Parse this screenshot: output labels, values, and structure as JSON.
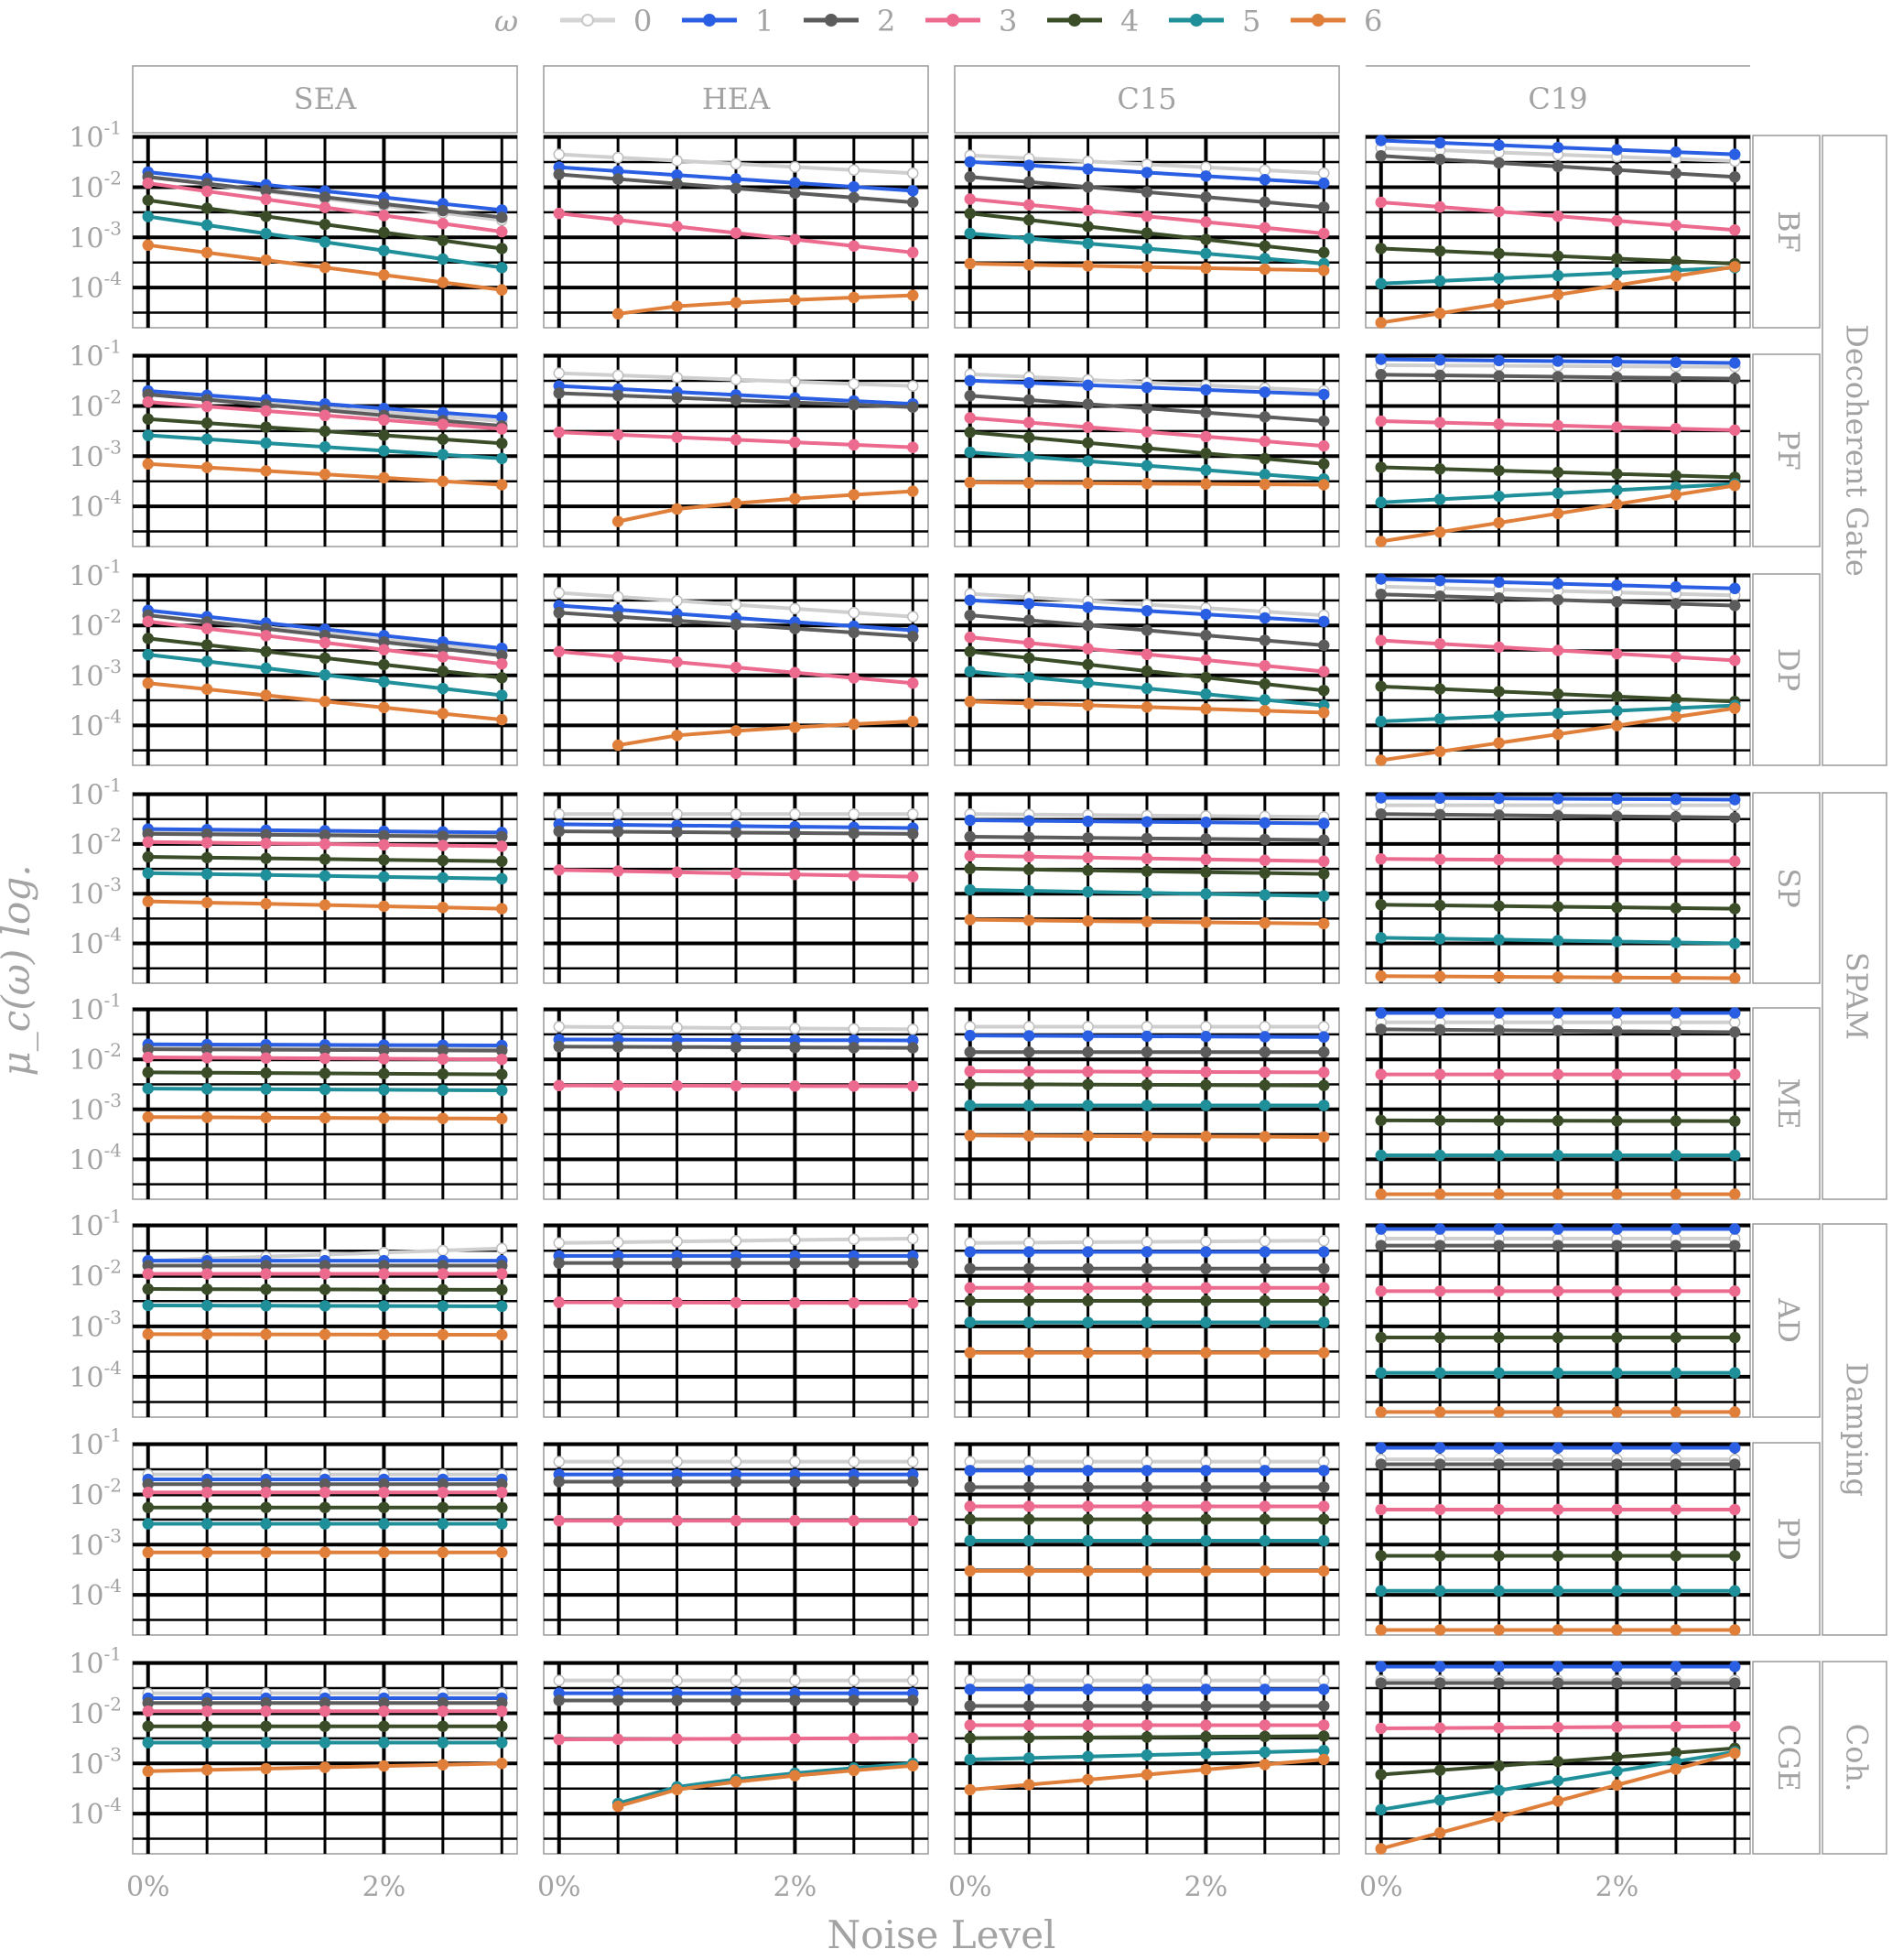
{
  "chart_data": {
    "type": "line",
    "facet_rows": [
      {
        "label": "BF",
        "group": "Decoherent Gate"
      },
      {
        "label": "PF",
        "group": "Decoherent Gate"
      },
      {
        "label": "DP",
        "group": "Decoherent Gate"
      },
      {
        "label": "SP",
        "group": "SPAM"
      },
      {
        "label": "ME",
        "group": "SPAM"
      },
      {
        "label": "AD",
        "group": "Damping"
      },
      {
        "label": "PD",
        "group": "Damping"
      },
      {
        "label": "CGE",
        "group": "Coh."
      }
    ],
    "row_groups": [
      {
        "label": "Decoherent Gate",
        "rows": [
          0,
          2
        ]
      },
      {
        "label": "SPAM",
        "rows": [
          3,
          4
        ]
      },
      {
        "label": "Damping",
        "rows": [
          5,
          6
        ]
      },
      {
        "label": "Coh.",
        "rows": [
          7,
          7
        ]
      }
    ],
    "facet_cols": [
      "SEA",
      "HEA",
      "C15",
      "C19"
    ],
    "xlabel": "Noise Level",
    "ylabel": "μ_c(ω) log.",
    "legend_title": "ω",
    "legend_position": "top",
    "x": [
      0,
      0.5,
      1,
      1.5,
      2,
      2.5,
      3
    ],
    "x_ticks": [
      {
        "value": 0,
        "label": "0%"
      },
      {
        "value": 2,
        "label": "2%"
      }
    ],
    "xlim": [
      -0.13,
      3.13
    ],
    "y_scale": "log",
    "ylim_exp": [
      -4.8,
      -0.97
    ],
    "y_ticks": [
      {
        "exp": -1,
        "base": "10",
        "sup": "-1"
      },
      {
        "exp": -2,
        "base": "10",
        "sup": "-2"
      },
      {
        "exp": -3,
        "base": "10",
        "sup": "-3"
      },
      {
        "exp": -4,
        "base": "10",
        "sup": "-4"
      }
    ],
    "series": [
      {
        "name": "0",
        "color": "#ffffff"
      },
      {
        "name": "1",
        "color": "#2b5fe3"
      },
      {
        "name": "2",
        "color": "#5c5c5c"
      },
      {
        "name": "3",
        "color": "#ec6a8e"
      },
      {
        "name": "4",
        "color": "#3a4d28"
      },
      {
        "name": "5",
        "color": "#1f8f99"
      },
      {
        "name": "6",
        "color": "#e07f3a"
      }
    ],
    "panels": {
      "BF": {
        "SEA": [
          [
            0.016,
            0.0022
          ],
          [
            0.02,
            0.0035
          ],
          [
            0.016,
            0.0025
          ],
          [
            0.012,
            0.0013
          ],
          [
            0.0055,
            0.0006
          ],
          [
            0.0026,
            0.00025
          ],
          [
            0.0007,
            9e-05
          ]
        ],
        "HEA": [
          [
            0.045,
            0.019
          ],
          [
            0.025,
            0.0085
          ],
          [
            0.018,
            0.005
          ],
          [
            0.003,
            0.0005
          ],
          null,
          null,
          [
            null,
            3e-05,
            7e-05
          ]
        ],
        "C15": [
          [
            0.043,
            0.019
          ],
          [
            0.032,
            0.012
          ],
          [
            0.016,
            0.004
          ],
          [
            0.0058,
            0.0012
          ],
          [
            0.003,
            0.0005
          ],
          [
            0.0012,
            0.0003
          ],
          [
            0.0003,
            0.00022
          ]
        ],
        "C19": [
          [
            0.06,
            0.033
          ],
          [
            0.085,
            0.045
          ],
          [
            0.042,
            0.016
          ],
          [
            0.005,
            0.0014
          ],
          [
            0.0006,
            0.0003
          ],
          [
            0.00012,
            0.00025
          ],
          [
            2e-05,
            0.00026
          ]
        ]
      },
      "PF": {
        "SEA": [
          [
            0.017,
            0.005
          ],
          [
            0.02,
            0.006
          ],
          [
            0.017,
            0.004
          ],
          [
            0.012,
            0.0035
          ],
          [
            0.0055,
            0.0018
          ],
          [
            0.0026,
            0.0009
          ],
          [
            0.0007,
            0.00027
          ]
        ],
        "HEA": [
          [
            0.045,
            0.025
          ],
          [
            0.025,
            0.011
          ],
          [
            0.018,
            0.0095
          ],
          [
            0.003,
            0.0015
          ],
          null,
          null,
          [
            null,
            5e-05,
            0.0002
          ]
        ],
        "C15": [
          [
            0.043,
            0.02
          ],
          [
            0.032,
            0.017
          ],
          [
            0.016,
            0.005
          ],
          [
            0.0058,
            0.0016
          ],
          [
            0.003,
            0.0007
          ],
          [
            0.0012,
            0.00035
          ],
          [
            0.0003,
            0.00027
          ]
        ],
        "C19": [
          [
            0.065,
            0.06
          ],
          [
            0.085,
            0.072
          ],
          [
            0.042,
            0.035
          ],
          [
            0.005,
            0.0033
          ],
          [
            0.0006,
            0.00038
          ],
          [
            0.00012,
            0.00028
          ],
          [
            2e-05,
            0.00026
          ]
        ]
      },
      "DP": {
        "SEA": [
          [
            0.016,
            0.003
          ],
          [
            0.02,
            0.0035
          ],
          [
            0.016,
            0.0025
          ],
          [
            0.012,
            0.0017
          ],
          [
            0.0055,
            0.0009
          ],
          [
            0.0026,
            0.0004
          ],
          [
            0.0007,
            0.00013
          ]
        ],
        "HEA": [
          [
            0.045,
            0.015
          ],
          [
            0.025,
            0.008
          ],
          [
            0.018,
            0.006
          ],
          [
            0.003,
            0.0007
          ],
          null,
          null,
          [
            null,
            4e-05,
            0.00012
          ]
        ],
        "C15": [
          [
            0.043,
            0.016
          ],
          [
            0.032,
            0.012
          ],
          [
            0.016,
            0.004
          ],
          [
            0.0058,
            0.0012
          ],
          [
            0.003,
            0.0005
          ],
          [
            0.0012,
            0.00025
          ],
          [
            0.0003,
            0.00018
          ]
        ],
        "C19": [
          [
            0.06,
            0.04
          ],
          [
            0.085,
            0.055
          ],
          [
            0.042,
            0.025
          ],
          [
            0.005,
            0.002
          ],
          [
            0.0006,
            0.0003
          ],
          [
            0.00012,
            0.00025
          ],
          [
            2e-05,
            0.00022
          ]
        ]
      },
      "SP": {
        "SEA": [
          [
            0.017,
            0.016
          ],
          [
            0.02,
            0.017
          ],
          [
            0.016,
            0.014
          ],
          [
            0.011,
            0.009
          ],
          [
            0.0055,
            0.0045
          ],
          [
            0.0026,
            0.002
          ],
          [
            0.0007,
            0.0005
          ]
        ],
        "HEA": [
          [
            0.04,
            0.04
          ],
          [
            0.025,
            0.021
          ],
          [
            0.018,
            0.016
          ],
          [
            0.003,
            0.0022
          ],
          null,
          null,
          null
        ],
        "C15": [
          [
            0.04,
            0.035
          ],
          [
            0.03,
            0.026
          ],
          [
            0.014,
            0.012
          ],
          [
            0.0058,
            0.0045
          ],
          [
            0.0032,
            0.0025
          ],
          [
            0.0012,
            0.0009
          ],
          [
            0.0003,
            0.00025
          ]
        ],
        "C19": [
          [
            0.06,
            0.06
          ],
          [
            0.085,
            0.078
          ],
          [
            0.04,
            0.034
          ],
          [
            0.005,
            0.0045
          ],
          [
            0.0006,
            0.0005
          ],
          [
            0.00013,
            0.0001
          ],
          [
            2.2e-05,
            2e-05
          ]
        ]
      },
      "ME": {
        "SEA": [
          [
            0.017,
            0.016
          ],
          [
            0.02,
            0.019
          ],
          [
            0.016,
            0.015
          ],
          [
            0.011,
            0.01
          ],
          [
            0.0055,
            0.005
          ],
          [
            0.0026,
            0.0024
          ],
          [
            0.0007,
            0.00065
          ]
        ],
        "HEA": [
          [
            0.045,
            0.04
          ],
          [
            0.025,
            0.024
          ],
          [
            0.018,
            0.017
          ],
          [
            0.003,
            0.0029
          ],
          null,
          null,
          null
        ],
        "C15": [
          [
            0.045,
            0.045
          ],
          [
            0.03,
            0.028
          ],
          [
            0.014,
            0.014
          ],
          [
            0.0058,
            0.0055
          ],
          [
            0.0032,
            0.003
          ],
          [
            0.0012,
            0.0012
          ],
          [
            0.0003,
            0.00028
          ]
        ],
        "C19": [
          [
            0.055,
            0.055
          ],
          [
            0.085,
            0.085
          ],
          [
            0.04,
            0.035
          ],
          [
            0.005,
            0.005
          ],
          [
            0.0006,
            0.00058
          ],
          [
            0.00012,
            0.00012
          ],
          [
            2e-05,
            2e-05
          ]
        ]
      },
      "AD": {
        "SEA": [
          [
            0.02,
            0.035
          ],
          [
            0.02,
            0.02
          ],
          [
            0.016,
            0.016
          ],
          [
            0.011,
            0.011
          ],
          [
            0.0055,
            0.0053
          ],
          [
            0.0026,
            0.0025
          ],
          [
            0.0007,
            0.00068
          ]
        ],
        "HEA": [
          [
            0.045,
            0.055
          ],
          [
            0.025,
            0.025
          ],
          [
            0.018,
            0.018
          ],
          [
            0.003,
            0.0029
          ],
          null,
          null,
          null
        ],
        "C15": [
          [
            0.045,
            0.05
          ],
          [
            0.03,
            0.03
          ],
          [
            0.014,
            0.014
          ],
          [
            0.0058,
            0.0058
          ],
          [
            0.0032,
            0.0032
          ],
          [
            0.0012,
            0.0012
          ],
          [
            0.0003,
            0.0003
          ]
        ],
        "C19": [
          [
            0.055,
            0.055
          ],
          [
            0.085,
            0.085
          ],
          [
            0.04,
            0.04
          ],
          [
            0.005,
            0.005
          ],
          [
            0.0006,
            0.0006
          ],
          [
            0.00012,
            0.00012
          ],
          [
            2e-05,
            2e-05
          ]
        ]
      },
      "PD": {
        "SEA": [
          [
            0.025,
            0.025
          ],
          [
            0.02,
            0.02
          ],
          [
            0.016,
            0.016
          ],
          [
            0.011,
            0.011
          ],
          [
            0.0055,
            0.0055
          ],
          [
            0.0026,
            0.0026
          ],
          [
            0.0007,
            0.0007
          ]
        ],
        "HEA": [
          [
            0.045,
            0.045
          ],
          [
            0.025,
            0.025
          ],
          [
            0.018,
            0.018
          ],
          [
            0.003,
            0.003
          ],
          null,
          null,
          null
        ],
        "C15": [
          [
            0.045,
            0.045
          ],
          [
            0.03,
            0.03
          ],
          [
            0.014,
            0.014
          ],
          [
            0.0058,
            0.0058
          ],
          [
            0.0032,
            0.0032
          ],
          [
            0.0012,
            0.0012
          ],
          [
            0.0003,
            0.0003
          ]
        ],
        "C19": [
          [
            0.05,
            0.05
          ],
          [
            0.085,
            0.085
          ],
          [
            0.04,
            0.04
          ],
          [
            0.005,
            0.005
          ],
          [
            0.0006,
            0.0006
          ],
          [
            0.00012,
            0.00012
          ],
          [
            2e-05,
            2e-05
          ]
        ]
      },
      "CGE": {
        "SEA": [
          [
            0.025,
            0.025
          ],
          [
            0.02,
            0.02
          ],
          [
            0.016,
            0.016
          ],
          [
            0.011,
            0.011
          ],
          [
            0.0055,
            0.0055
          ],
          [
            0.0026,
            0.0026
          ],
          [
            0.0007,
            0.001
          ]
        ],
        "HEA": [
          [
            0.045,
            0.045
          ],
          [
            0.025,
            0.025
          ],
          [
            0.018,
            0.018
          ],
          [
            0.003,
            0.0032
          ],
          null,
          [
            null,
            0.00016,
            0.001
          ],
          [
            null,
            0.00014,
            0.0009
          ]
        ],
        "C15": [
          [
            0.045,
            0.045
          ],
          [
            0.03,
            0.03
          ],
          [
            0.014,
            0.014
          ],
          [
            0.0058,
            0.0058
          ],
          [
            0.0032,
            0.0035
          ],
          [
            0.0012,
            0.0018
          ],
          [
            0.0003,
            0.0012
          ]
        ],
        "C19": [
          [
            0.045,
            0.045
          ],
          [
            0.085,
            0.085
          ],
          [
            0.04,
            0.04
          ],
          [
            0.005,
            0.0055
          ],
          [
            0.0006,
            0.002
          ],
          [
            0.00012,
            0.0017
          ],
          [
            2e-05,
            0.0016
          ]
        ]
      }
    }
  }
}
